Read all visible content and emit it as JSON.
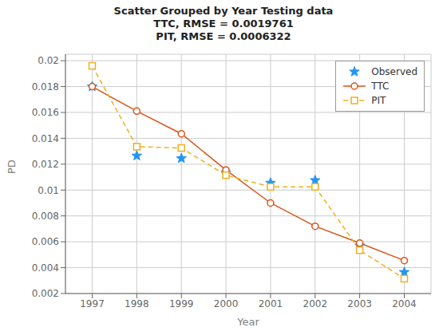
{
  "chart_data": {
    "type": "line",
    "title": "Scatter Grouped by Year Testing data\nTTC, RMSE = 0.0019761\nPIT, RMSE = 0.0006322",
    "xlabel": "Year",
    "ylabel": "PD",
    "x": [
      1997,
      1998,
      1999,
      2000,
      2001,
      2002,
      2003,
      2004
    ],
    "xlim": [
      1996.4,
      2004.6
    ],
    "xticks": [
      1997,
      1998,
      1999,
      2000,
      2001,
      2002,
      2003,
      2004
    ],
    "ylim": [
      0.002,
      0.0205
    ],
    "yticks": [
      0.002,
      0.004,
      0.006,
      0.008,
      0.01,
      0.012,
      0.014,
      0.016,
      0.018,
      0.02
    ],
    "grid": true,
    "legend": "upper right",
    "series": [
      {
        "name": "Observed",
        "color": "#2196F3",
        "marker": "star",
        "line_style": "none",
        "values": [
          0.018,
          0.01265,
          0.01245,
          0.01135,
          0.01055,
          0.01075,
          0.0057,
          0.00365
        ]
      },
      {
        "name": "TTC",
        "color": "#D95319",
        "marker": "circle",
        "line_style": "solid",
        "values": [
          0.018,
          0.0161,
          0.01435,
          0.01155,
          0.009,
          0.0072,
          0.0059,
          0.00455
        ]
      },
      {
        "name": "PIT",
        "color": "#EDB120",
        "marker": "square",
        "line_style": "dashed",
        "values": [
          0.0196,
          0.01335,
          0.01325,
          0.01115,
          0.01025,
          0.01025,
          0.00535,
          0.00315
        ]
      }
    ]
  }
}
